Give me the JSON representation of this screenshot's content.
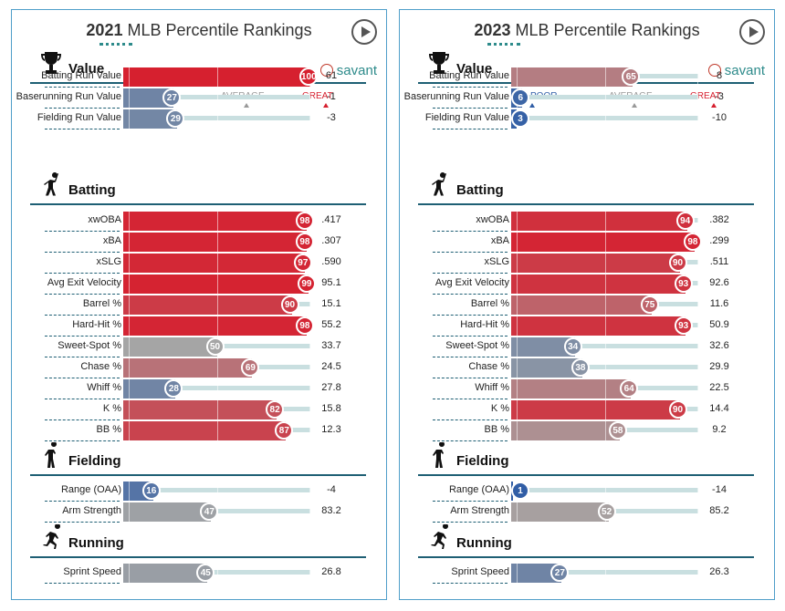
{
  "legend": {
    "poor": "POOR",
    "average": "AVERAGE",
    "great": "GREAT"
  },
  "brand": "savant",
  "colors": {
    "poor": "#2f5da6",
    "average": "#a5a5a5",
    "great": "#d6202f",
    "border": "#4f9ec9",
    "section_line": "#1e5f74",
    "accent": "#2e8b8b"
  },
  "chart_data": [
    {
      "type": "bar",
      "title_year": "2021",
      "title_rest": " MLB Percentile Rankings",
      "xlim": [
        0,
        100
      ],
      "sections": [
        {
          "name": "Value",
          "icon": "trophy-icon",
          "rows": [
            {
              "label": "Batting Run Value",
              "percentile": 100,
              "value": "61"
            },
            {
              "label": "Baserunning Run Value",
              "percentile": 27,
              "value": "-1"
            },
            {
              "label": "Fielding Run Value",
              "percentile": 29,
              "value": "-3"
            }
          ]
        },
        {
          "name": "Batting",
          "icon": "batter-icon",
          "rows": [
            {
              "label": "xwOBA",
              "percentile": 98,
              "value": ".417"
            },
            {
              "label": "xBA",
              "percentile": 98,
              "value": ".307"
            },
            {
              "label": "xSLG",
              "percentile": 97,
              "value": ".590"
            },
            {
              "label": "Avg Exit Velocity",
              "percentile": 99,
              "value": "95.1"
            },
            {
              "label": "Barrel %",
              "percentile": 90,
              "value": "15.1"
            },
            {
              "label": "Hard-Hit %",
              "percentile": 98,
              "value": "55.2"
            },
            {
              "label": "Sweet-Spot %",
              "percentile": 50,
              "value": "33.7"
            },
            {
              "label": "Chase %",
              "percentile": 69,
              "value": "24.5"
            },
            {
              "label": "Whiff %",
              "percentile": 28,
              "value": "27.8"
            },
            {
              "label": "K %",
              "percentile": 82,
              "value": "15.8"
            },
            {
              "label": "BB %",
              "percentile": 87,
              "value": "12.3"
            }
          ]
        },
        {
          "name": "Fielding",
          "icon": "fielder-icon",
          "rows": [
            {
              "label": "Range (OAA)",
              "percentile": 16,
              "value": "-4"
            },
            {
              "label": "Arm Strength",
              "percentile": 47,
              "value": "83.2"
            }
          ]
        },
        {
          "name": "Running",
          "icon": "runner-icon",
          "rows": [
            {
              "label": "Sprint Speed",
              "percentile": 45,
              "value": "26.8"
            }
          ]
        }
      ]
    },
    {
      "type": "bar",
      "title_year": "2023",
      "title_rest": " MLB Percentile Rankings",
      "xlim": [
        0,
        100
      ],
      "sections": [
        {
          "name": "Value",
          "icon": "trophy-icon",
          "rows": [
            {
              "label": "Batting Run Value",
              "percentile": 65,
              "value": "8"
            },
            {
              "label": "Baserunning Run Value",
              "percentile": 6,
              "value": "-3"
            },
            {
              "label": "Fielding Run Value",
              "percentile": 3,
              "value": "-10"
            }
          ]
        },
        {
          "name": "Batting",
          "icon": "batter-icon",
          "rows": [
            {
              "label": "xwOBA",
              "percentile": 94,
              "value": ".382"
            },
            {
              "label": "xBA",
              "percentile": 98,
              "value": ".299"
            },
            {
              "label": "xSLG",
              "percentile": 90,
              "value": ".511"
            },
            {
              "label": "Avg Exit Velocity",
              "percentile": 93,
              "value": "92.6"
            },
            {
              "label": "Barrel %",
              "percentile": 75,
              "value": "11.6"
            },
            {
              "label": "Hard-Hit %",
              "percentile": 93,
              "value": "50.9"
            },
            {
              "label": "Sweet-Spot %",
              "percentile": 34,
              "value": "32.6"
            },
            {
              "label": "Chase %",
              "percentile": 38,
              "value": "29.9"
            },
            {
              "label": "Whiff %",
              "percentile": 64,
              "value": "22.5"
            },
            {
              "label": "K %",
              "percentile": 90,
              "value": "14.4"
            },
            {
              "label": "BB %",
              "percentile": 58,
              "value": "9.2"
            }
          ]
        },
        {
          "name": "Fielding",
          "icon": "fielder-icon",
          "rows": [
            {
              "label": "Range (OAA)",
              "percentile": 1,
              "value": "-14"
            },
            {
              "label": "Arm Strength",
              "percentile": 52,
              "value": "85.2"
            }
          ]
        },
        {
          "name": "Running",
          "icon": "runner-icon",
          "rows": [
            {
              "label": "Sprint Speed",
              "percentile": 27,
              "value": "26.3"
            }
          ]
        }
      ]
    }
  ]
}
